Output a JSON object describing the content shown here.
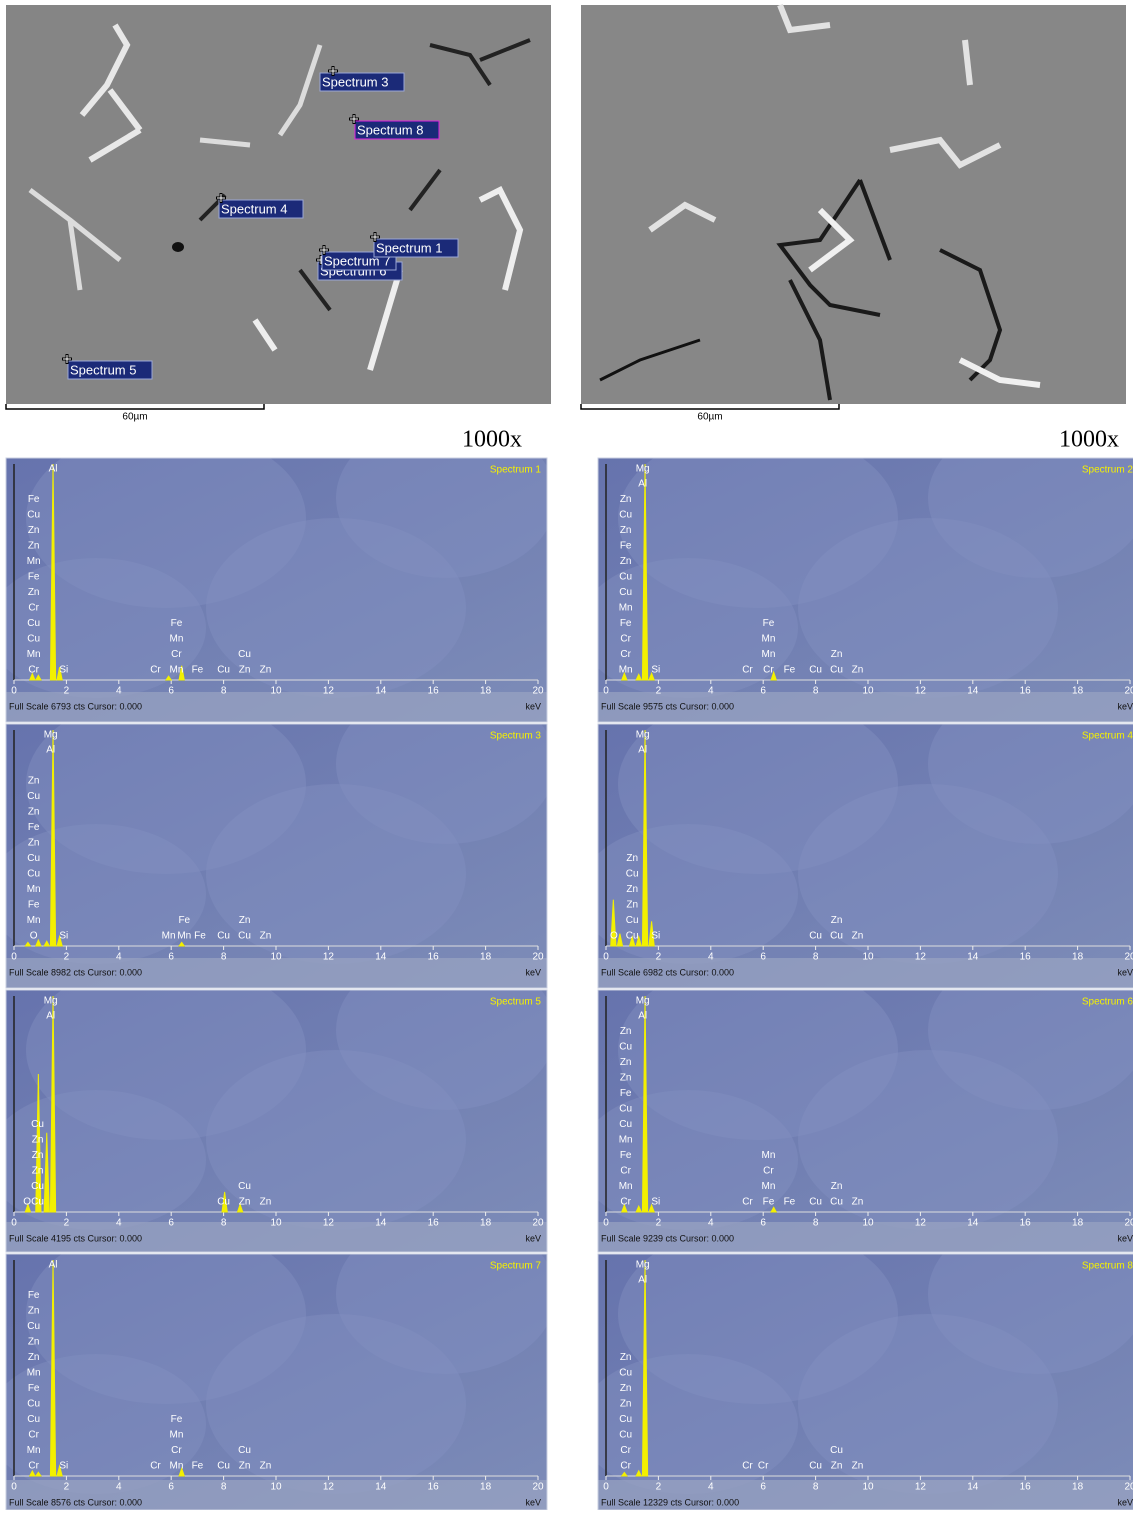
{
  "micrographs": [
    {
      "scale_bar": "60µm",
      "magnification": "1000x",
      "markers": [
        "Spectrum 3",
        "Spectrum 8",
        "Spectrum 4",
        "Spectrum 6",
        "Spectrum 7",
        "Spectrum 1",
        "Spectrum 5"
      ]
    },
    {
      "scale_bar": "60µm",
      "magnification": "1000x"
    }
  ],
  "chart_data": [
    {
      "type": "spectrum",
      "title": "Spectrum 1",
      "footer": "Full Scale 6793 cts Cursor: 0.000",
      "x_unit": "keV",
      "xlim": [
        0,
        20
      ],
      "xticks": [
        0,
        2,
        4,
        6,
        8,
        10,
        12,
        14,
        16,
        18,
        20
      ],
      "ylim": [
        0,
        6793
      ],
      "x": [
        0.7,
        0.93,
        1.49,
        1.74,
        5.9,
        6.4
      ],
      "values": [
        200,
        150,
        6793,
        400,
        120,
        450
      ],
      "element_labels": [
        {
          "x": 0.75,
          "align": "bottom",
          "labels": [
            "Fe",
            "Cu",
            "Zn",
            "Zn",
            "Mn",
            "Fe",
            "Zn",
            "Cr",
            "Cu",
            "Cu",
            "Mn",
            "Cr"
          ]
        },
        {
          "x": 1.49,
          "align": "top",
          "labels": [
            "Al"
          ]
        },
        {
          "x": 1.9,
          "align": "bottom",
          "labels": [
            "Si"
          ]
        },
        {
          "x": 5.4,
          "align": "bottom",
          "labels": [
            "Cr"
          ]
        },
        {
          "x": 6.2,
          "align": "bottom",
          "labels": [
            "Fe",
            "Mn",
            "Cr",
            "Mn"
          ]
        },
        {
          "x": 7.0,
          "align": "bottom",
          "labels": [
            "Fe"
          ]
        },
        {
          "x": 8.0,
          "align": "bottom",
          "labels": [
            "Cu"
          ]
        },
        {
          "x": 8.8,
          "align": "bottom",
          "labels": [
            "Cu",
            "Zn"
          ]
        },
        {
          "x": 9.6,
          "align": "bottom",
          "labels": [
            "Zn"
          ]
        }
      ]
    },
    {
      "type": "spectrum",
      "title": "Spectrum 2",
      "footer": "Full Scale 9575 cts Cursor: 0.000",
      "x_unit": "keV",
      "xlim": [
        0,
        20
      ],
      "xticks": [
        0,
        2,
        4,
        6,
        8,
        10,
        12,
        14,
        16,
        18,
        20
      ],
      "ylim": [
        0,
        9575
      ],
      "x": [
        0.7,
        1.25,
        1.49,
        1.74,
        6.4
      ],
      "values": [
        300,
        250,
        9575,
        300,
        350
      ],
      "element_labels": [
        {
          "x": 0.75,
          "align": "bottom",
          "labels": [
            "Zn",
            "Cu",
            "Zn",
            "Fe",
            "Zn",
            "Cu",
            "Cu",
            "Mn",
            "Fe",
            "Cr",
            "Cr",
            "Mn"
          ]
        },
        {
          "x": 1.4,
          "align": "top",
          "labels": [
            "Mg",
            "Al"
          ]
        },
        {
          "x": 1.9,
          "align": "bottom",
          "labels": [
            "Si"
          ]
        },
        {
          "x": 5.4,
          "align": "bottom",
          "labels": [
            "Cr"
          ]
        },
        {
          "x": 6.2,
          "align": "bottom",
          "labels": [
            "Fe",
            "Mn",
            "Mn",
            "Cr"
          ]
        },
        {
          "x": 7.0,
          "align": "bottom",
          "labels": [
            "Fe"
          ]
        },
        {
          "x": 8.0,
          "align": "bottom",
          "labels": [
            "Cu"
          ]
        },
        {
          "x": 8.8,
          "align": "bottom",
          "labels": [
            "Zn",
            "Cu"
          ]
        },
        {
          "x": 9.6,
          "align": "bottom",
          "labels": [
            "Zn"
          ]
        }
      ]
    },
    {
      "type": "spectrum",
      "title": "Spectrum 3",
      "footer": "Full Scale 8982 cts Cursor: 0.000",
      "x_unit": "keV",
      "xlim": [
        0,
        20
      ],
      "xticks": [
        0,
        2,
        4,
        6,
        8,
        10,
        12,
        14,
        16,
        18,
        20
      ],
      "ylim": [
        0,
        8982
      ],
      "x": [
        0.53,
        0.93,
        1.25,
        1.49,
        1.74,
        6.4
      ],
      "values": [
        150,
        250,
        200,
        8982,
        400,
        150
      ],
      "element_labels": [
        {
          "x": 0.75,
          "align": "bottom",
          "labels": [
            "Zn",
            "Cu",
            "Zn",
            "Fe",
            "Zn",
            "Cu",
            "Cu",
            "Mn",
            "Fe",
            "Mn",
            "O"
          ]
        },
        {
          "x": 1.4,
          "align": "top",
          "labels": [
            "Mg",
            "Al"
          ]
        },
        {
          "x": 1.9,
          "align": "bottom",
          "labels": [
            "Si"
          ]
        },
        {
          "x": 5.9,
          "align": "bottom",
          "labels": [
            "Mn"
          ]
        },
        {
          "x": 6.5,
          "align": "bottom",
          "labels": [
            "Fe",
            "Mn"
          ]
        },
        {
          "x": 7.1,
          "align": "bottom",
          "labels": [
            "Fe"
          ]
        },
        {
          "x": 8.0,
          "align": "bottom",
          "labels": [
            "Cu"
          ]
        },
        {
          "x": 8.8,
          "align": "bottom",
          "labels": [
            "Zn",
            "Cu"
          ]
        },
        {
          "x": 9.6,
          "align": "bottom",
          "labels": [
            "Zn"
          ]
        }
      ]
    },
    {
      "type": "spectrum",
      "title": "Spectrum 4",
      "footer": "Full Scale 6982 cts Cursor: 0.000",
      "x_unit": "keV",
      "xlim": [
        0,
        20
      ],
      "xticks": [
        0,
        2,
        4,
        6,
        8,
        10,
        12,
        14,
        16,
        18,
        20
      ],
      "ylim": [
        0,
        6982
      ],
      "x": [
        0.28,
        0.53,
        1.0,
        1.25,
        1.49,
        1.74
      ],
      "values": [
        1500,
        400,
        300,
        300,
        6982,
        800
      ],
      "element_labels": [
        {
          "x": 0.3,
          "align": "bottom",
          "labels": [
            "O"
          ]
        },
        {
          "x": 1.0,
          "align": "bottom",
          "labels": [
            "Zn",
            "Cu",
            "Zn",
            "Zn",
            "Cu",
            "Cu"
          ]
        },
        {
          "x": 1.4,
          "align": "top",
          "labels": [
            "Mg",
            "Al"
          ]
        },
        {
          "x": 1.9,
          "align": "bottom",
          "labels": [
            "Si"
          ]
        },
        {
          "x": 8.0,
          "align": "bottom",
          "labels": [
            "Cu"
          ]
        },
        {
          "x": 8.8,
          "align": "bottom",
          "labels": [
            "Zn",
            "Cu"
          ]
        },
        {
          "x": 9.6,
          "align": "bottom",
          "labels": [
            "Zn"
          ]
        }
      ]
    },
    {
      "type": "spectrum",
      "title": "Spectrum 5",
      "footer": "Full Scale 4195 cts Cursor: 0.000",
      "x_unit": "keV",
      "xlim": [
        0,
        20
      ],
      "xticks": [
        0,
        2,
        4,
        6,
        8,
        10,
        12,
        14,
        16,
        18,
        20
      ],
      "ylim": [
        0,
        4195
      ],
      "x": [
        0.53,
        0.93,
        1.25,
        1.49,
        8.04,
        8.63
      ],
      "values": [
        150,
        2680,
        1540,
        4195,
        390,
        150
      ],
      "element_labels": [
        {
          "x": 0.5,
          "align": "bottom",
          "labels": [
            "O"
          ]
        },
        {
          "x": 0.9,
          "align": "bottom",
          "labels": [
            "Cu",
            "Zn",
            "Zn",
            "Zn",
            "Cu",
            "Cu"
          ]
        },
        {
          "x": 1.4,
          "align": "top",
          "labels": [
            "Mg",
            "Al"
          ]
        },
        {
          "x": 8.0,
          "align": "bottom",
          "labels": [
            "Cu"
          ]
        },
        {
          "x": 8.8,
          "align": "bottom",
          "labels": [
            "Cu",
            "Zn"
          ]
        },
        {
          "x": 9.6,
          "align": "bottom",
          "labels": [
            "Zn"
          ]
        }
      ]
    },
    {
      "type": "spectrum",
      "title": "Spectrum 6",
      "footer": "Full Scale 9239 cts Cursor: 0.000",
      "x_unit": "keV",
      "xlim": [
        0,
        20
      ],
      "xticks": [
        0,
        2,
        4,
        6,
        8,
        10,
        12,
        14,
        16,
        18,
        20
      ],
      "ylim": [
        0,
        9239
      ],
      "x": [
        0.7,
        1.25,
        1.49,
        1.74,
        6.4
      ],
      "values": [
        300,
        250,
        9239,
        300,
        200
      ],
      "element_labels": [
        {
          "x": 0.75,
          "align": "bottom",
          "labels": [
            "Zn",
            "Cu",
            "Zn",
            "Zn",
            "Fe",
            "Cu",
            "Cu",
            "Mn",
            "Fe",
            "Cr",
            "Mn",
            "Cr"
          ]
        },
        {
          "x": 1.4,
          "align": "top",
          "labels": [
            "Mg",
            "Al"
          ]
        },
        {
          "x": 1.9,
          "align": "bottom",
          "labels": [
            "Si"
          ]
        },
        {
          "x": 5.4,
          "align": "bottom",
          "labels": [
            "Cr"
          ]
        },
        {
          "x": 6.2,
          "align": "bottom",
          "labels": [
            "Mn",
            "Cr",
            "Mn",
            "Fe"
          ]
        },
        {
          "x": 7.0,
          "align": "bottom",
          "labels": [
            "Fe"
          ]
        },
        {
          "x": 8.0,
          "align": "bottom",
          "labels": [
            "Cu"
          ]
        },
        {
          "x": 8.8,
          "align": "bottom",
          "labels": [
            "Zn",
            "Cu"
          ]
        },
        {
          "x": 9.6,
          "align": "bottom",
          "labels": [
            "Zn"
          ]
        }
      ]
    },
    {
      "type": "spectrum",
      "title": "Spectrum 7",
      "footer": "Full Scale 8576 cts Cursor: 0.000",
      "x_unit": "keV",
      "xlim": [
        0,
        20
      ],
      "xticks": [
        0,
        2,
        4,
        6,
        8,
        10,
        12,
        14,
        16,
        18,
        20
      ],
      "ylim": [
        0,
        8576
      ],
      "x": [
        0.7,
        0.93,
        1.49,
        1.74,
        6.4
      ],
      "values": [
        200,
        150,
        8576,
        400,
        300
      ],
      "element_labels": [
        {
          "x": 0.75,
          "align": "bottom",
          "labels": [
            "Fe",
            "Zn",
            "Cu",
            "Zn",
            "Zn",
            "Mn",
            "Fe",
            "Cu",
            "Cu",
            "Cr",
            "Mn",
            "Cr"
          ]
        },
        {
          "x": 1.49,
          "align": "top",
          "labels": [
            "Al"
          ]
        },
        {
          "x": 1.9,
          "align": "bottom",
          "labels": [
            "Si"
          ]
        },
        {
          "x": 5.4,
          "align": "bottom",
          "labels": [
            "Cr"
          ]
        },
        {
          "x": 6.2,
          "align": "bottom",
          "labels": [
            "Fe",
            "Mn",
            "Cr",
            "Mn"
          ]
        },
        {
          "x": 7.0,
          "align": "bottom",
          "labels": [
            "Fe"
          ]
        },
        {
          "x": 8.0,
          "align": "bottom",
          "labels": [
            "Cu"
          ]
        },
        {
          "x": 8.8,
          "align": "bottom",
          "labels": [
            "Cu",
            "Zn"
          ]
        },
        {
          "x": 9.6,
          "align": "bottom",
          "labels": [
            "Zn"
          ]
        }
      ]
    },
    {
      "type": "spectrum",
      "title": "Spectrum 8",
      "footer": "Full Scale 12329 cts Cursor: 0.000",
      "x_unit": "keV",
      "xlim": [
        0,
        20
      ],
      "xticks": [
        0,
        2,
        4,
        6,
        8,
        10,
        12,
        14,
        16,
        18,
        20
      ],
      "ylim": [
        0,
        12329
      ],
      "x": [
        0.7,
        1.25,
        1.49
      ],
      "values": [
        200,
        300,
        12329
      ],
      "element_labels": [
        {
          "x": 0.75,
          "align": "bottom",
          "labels": [
            "Zn",
            "Cu",
            "Zn",
            "Zn",
            "Cu",
            "Cu",
            "Cr",
            "Cr"
          ]
        },
        {
          "x": 1.4,
          "align": "top",
          "labels": [
            "Mg",
            "Al"
          ]
        },
        {
          "x": 5.4,
          "align": "bottom",
          "labels": [
            "Cr"
          ]
        },
        {
          "x": 6.0,
          "align": "bottom",
          "labels": [
            "Cr"
          ]
        },
        {
          "x": 8.0,
          "align": "bottom",
          "labels": [
            "Cu"
          ]
        },
        {
          "x": 8.8,
          "align": "bottom",
          "labels": [
            "Cu",
            "Zn"
          ]
        },
        {
          "x": 9.6,
          "align": "bottom",
          "labels": [
            "Zn"
          ]
        }
      ]
    }
  ]
}
